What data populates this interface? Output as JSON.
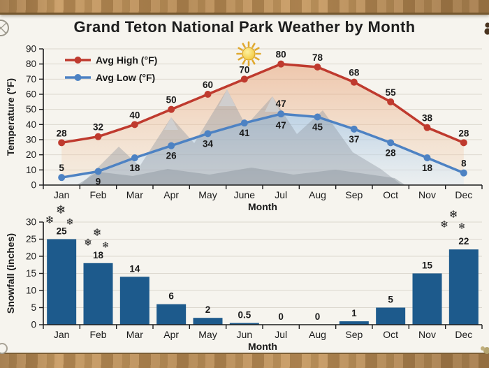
{
  "title": "Grand Teton National Park Weather by Month",
  "colors": {
    "background": "#f6f4ee",
    "frame_wood": "#b58b55",
    "high_line": "#bf3a2e",
    "low_line": "#4d82c3",
    "bar": "#1d5a8c",
    "snowflake": "#4a7fb5",
    "sun": "#f2c740",
    "grid": "#dcd8cf",
    "axis": "#1c1c1c",
    "text": "#1a1a1a"
  },
  "icons": {
    "snowflake": "❄",
    "sun": "sun-with-rays",
    "compass": "compass-rose-partial",
    "paw": "bear-paw-partial"
  },
  "chart_data": [
    {
      "type": "line",
      "title": "Grand Teton National Park Weather by Month",
      "categories": [
        "Jan",
        "Feb",
        "Mar",
        "Apr",
        "May",
        "June",
        "Jul",
        "Aug",
        "Sep",
        "Oct",
        "Nov",
        "Dec"
      ],
      "xlabel": "Month",
      "ylabel": "Temperature (°F)",
      "ylim": [
        0,
        90
      ],
      "ytick_step": 10,
      "grid": true,
      "legend_position": "top-left",
      "series": [
        {
          "name": "Avg High (°F)",
          "color": "#bf3a2e",
          "values": [
            28,
            32,
            40,
            50,
            60,
            70,
            80,
            78,
            68,
            55,
            38,
            28
          ]
        },
        {
          "name": "Avg Low (°F)",
          "color": "#4d82c3",
          "values": [
            5,
            9,
            18,
            26,
            34,
            41,
            47,
            45,
            37,
            28,
            18,
            8
          ]
        }
      ],
      "point_labels": true,
      "duplicate_label": {
        "series": "Avg Low (°F)",
        "category": "Jul",
        "text": "47",
        "note": "47 shown both above and below the July low point"
      },
      "decorations": [
        "sun above June-July",
        "faint gray mountain watermark",
        "warm fill between lines",
        "cool fill below low line"
      ]
    },
    {
      "type": "bar",
      "categories": [
        "Jan",
        "Feb",
        "Mar",
        "Apr",
        "May",
        "Jun",
        "Jul",
        "Aug",
        "Sep",
        "Oct",
        "Nov",
        "Dec"
      ],
      "values": [
        25,
        18,
        14,
        6,
        2,
        0.5,
        0,
        0,
        1,
        5,
        15,
        22
      ],
      "value_labels": [
        "25",
        "18",
        "14",
        "6",
        "2",
        "0.5",
        "0",
        "0",
        "1",
        "5",
        "15",
        "22"
      ],
      "xlabel": "Month",
      "ylabel": "Snowfall (inches)",
      "ylim": [
        0,
        30
      ],
      "ytick_step": 5,
      "bar_color": "#1d5a8c",
      "grid": true,
      "decorations": [
        "snowflake clusters above Jan, Feb and Dec bars"
      ]
    }
  ]
}
